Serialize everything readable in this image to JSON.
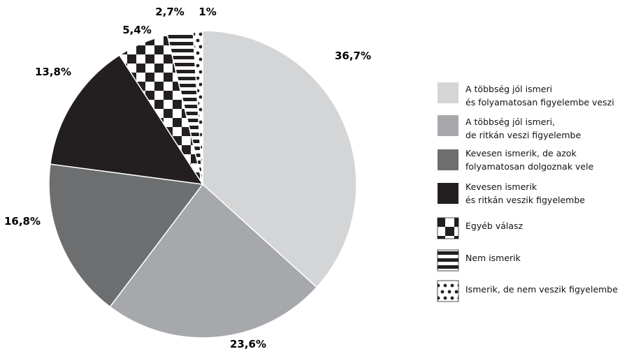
{
  "chart_data": {
    "type": "pie",
    "title": "",
    "legend_position": "right",
    "slices": [
      {
        "label": "A többség jól ismeri\nés folyamatosan figyelembe veszi",
        "value": 36.7,
        "value_label": "36,7%",
        "fill": "#d4d5d6",
        "pattern": "solid"
      },
      {
        "label": "A többség jól ismeri,\nde ritkán veszi figyelembe",
        "value": 23.6,
        "value_label": "23,6%",
        "fill": "#a6a8ab",
        "pattern": "solid"
      },
      {
        "label": "Kevesen ismerik, de azok\nfolyamatosan dolgoznak vele",
        "value": 16.8,
        "value_label": "16,8%",
        "fill": "#6c6e70",
        "pattern": "solid"
      },
      {
        "label": "Kevesen ismerik\nés ritkán veszik figyelembe",
        "value": 13.8,
        "value_label": "13,8%",
        "fill": "#231f20",
        "pattern": "solid"
      },
      {
        "label": "Egyéb válasz",
        "value": 5.4,
        "value_label": "5,4%",
        "fill": "#231f20",
        "pattern": "checker"
      },
      {
        "label": "Nem ismerik",
        "value": 2.7,
        "value_label": "2,7%",
        "fill": "#231f20",
        "pattern": "stripes"
      },
      {
        "label": "Ismerik, de nem veszik figyelembe",
        "value": 1,
        "value_label": "1%",
        "fill": "#231f20",
        "pattern": "dots"
      }
    ]
  }
}
